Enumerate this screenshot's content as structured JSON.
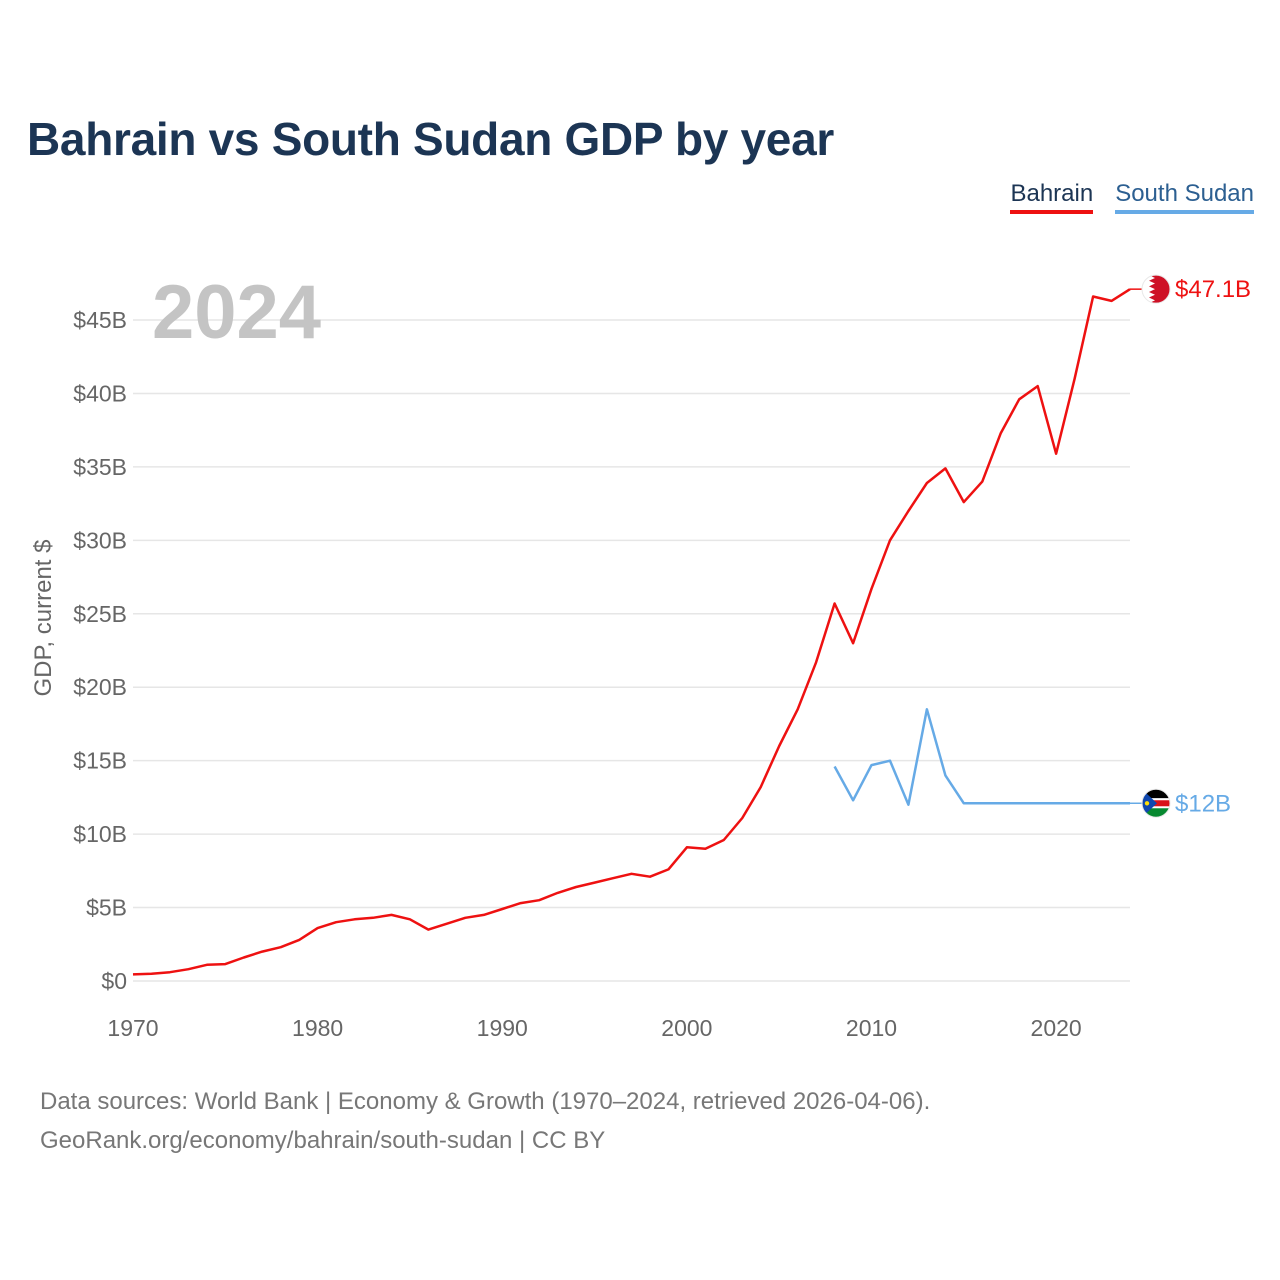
{
  "title": "Bahrain vs South Sudan GDP by year",
  "legend": [
    {
      "label": "Bahrain",
      "color": "#ee1111"
    },
    {
      "label": "South Sudan",
      "color": "#66aae6"
    }
  ],
  "year_label": "2024",
  "footer": {
    "line1": "Data sources: World Bank | Economy & Growth (1970–2024, retrieved 2026-04-06).",
    "line2": "GeoRank.org/economy/bahrain/south-sudan | CC BY"
  },
  "chart_data": {
    "type": "line",
    "title": "Bahrain vs South Sudan GDP by year",
    "xlabel": "",
    "ylabel": "GDP, current $",
    "xlim": [
      1970,
      2024
    ],
    "ylim": [
      0,
      47.5
    ],
    "x_ticks": [
      1970,
      1980,
      1990,
      2000,
      2010,
      2020
    ],
    "y_ticks": [
      {
        "value": 0,
        "label": "$0"
      },
      {
        "value": 5,
        "label": "$5B"
      },
      {
        "value": 10,
        "label": "$10B"
      },
      {
        "value": 15,
        "label": "$15B"
      },
      {
        "value": 20,
        "label": "$20B"
      },
      {
        "value": 25,
        "label": "$25B"
      },
      {
        "value": 30,
        "label": "$30B"
      },
      {
        "value": 35,
        "label": "$35B"
      },
      {
        "value": 40,
        "label": "$40B"
      },
      {
        "value": 45,
        "label": "$45B"
      }
    ],
    "grid": true,
    "legend_position": "top-right",
    "series": [
      {
        "name": "Bahrain",
        "color": "#ee1111",
        "end_label": "$47.1B",
        "x": [
          1970,
          1971,
          1972,
          1973,
          1974,
          1975,
          1976,
          1977,
          1978,
          1979,
          1980,
          1981,
          1982,
          1983,
          1984,
          1985,
          1986,
          1987,
          1988,
          1989,
          1990,
          1991,
          1992,
          1993,
          1994,
          1995,
          1996,
          1997,
          1998,
          1999,
          2000,
          2001,
          2002,
          2003,
          2004,
          2005,
          2006,
          2007,
          2008,
          2009,
          2010,
          2011,
          2012,
          2013,
          2014,
          2015,
          2016,
          2017,
          2018,
          2019,
          2020,
          2021,
          2022,
          2023,
          2024
        ],
        "values": [
          0.45,
          0.5,
          0.6,
          0.8,
          1.1,
          1.15,
          1.6,
          2.0,
          2.3,
          2.8,
          3.6,
          4.0,
          4.2,
          4.3,
          4.5,
          4.2,
          3.5,
          3.9,
          4.3,
          4.5,
          4.9,
          5.3,
          5.5,
          6.0,
          6.4,
          6.7,
          7.0,
          7.3,
          7.1,
          7.6,
          9.1,
          9.0,
          9.6,
          11.1,
          13.2,
          16.0,
          18.5,
          21.7,
          25.7,
          23.0,
          26.7,
          30.0,
          32.0,
          33.9,
          34.9,
          32.6,
          34.0,
          37.3,
          39.6,
          40.5,
          35.9,
          41.0,
          46.6,
          46.3,
          47.1
        ]
      },
      {
        "name": "South Sudan",
        "color": "#66aae6",
        "end_label": "$12B",
        "x": [
          2008,
          2009,
          2010,
          2011,
          2012,
          2013,
          2014,
          2015,
          2016,
          2017,
          2018,
          2019,
          2020,
          2021,
          2022,
          2023,
          2024
        ],
        "values": [
          14.6,
          12.3,
          14.7,
          15.0,
          12.0,
          18.5,
          14.0,
          12.1,
          12.1,
          12.1,
          12.1,
          12.1,
          12.1,
          12.1,
          12.1,
          12.1,
          12.1
        ]
      }
    ]
  }
}
